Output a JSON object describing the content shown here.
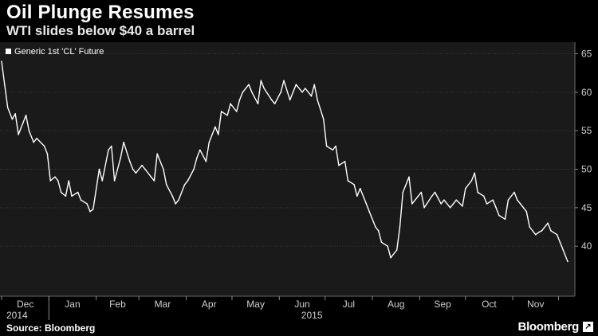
{
  "header": {
    "title": "Oil Plunge Resumes",
    "subtitle": "WTI slides below $40 a barrel"
  },
  "footer": {
    "source": "Source: Bloomberg",
    "brand": "Bloomberg"
  },
  "colors": {
    "background": "#000000",
    "plot_background": "#1a1a1a",
    "line": "#ffffff",
    "grid": "#3a3a3a"
  },
  "chart_data": {
    "type": "line",
    "title": "Oil Plunge Resumes",
    "subtitle": "WTI slides below $40 a barrel",
    "legend": {
      "entries": [
        "Generic 1st 'CL' Future"
      ],
      "placement": "top-left"
    },
    "ylim": [
      33.5,
      66.5
    ],
    "y_ticks": [
      40,
      45,
      50,
      55,
      60,
      65
    ],
    "x_tick_labels": [
      "Dec",
      "Jan",
      "Feb",
      "Mar",
      "Apr",
      "May",
      "Jun",
      "Jul",
      "Aug",
      "Sep",
      "Oct",
      "Nov"
    ],
    "year_labels": [
      "2014",
      "2015"
    ],
    "grid": true,
    "series": [
      {
        "name": "Generic 1st 'CL' Future",
        "x": [
          "2014-12-01",
          "2014-12-03",
          "2014-12-05",
          "2014-12-08",
          "2014-12-10",
          "2014-12-12",
          "2014-12-15",
          "2014-12-17",
          "2014-12-19",
          "2014-12-22",
          "2014-12-24",
          "2014-12-29",
          "2014-12-31",
          "2015-01-02",
          "2015-01-05",
          "2015-01-07",
          "2015-01-09",
          "2015-01-12",
          "2015-01-14",
          "2015-01-16",
          "2015-01-20",
          "2015-01-22",
          "2015-01-26",
          "2015-01-28",
          "2015-01-30",
          "2015-02-03",
          "2015-02-05",
          "2015-02-09",
          "2015-02-11",
          "2015-02-13",
          "2015-02-17",
          "2015-02-19",
          "2015-02-23",
          "2015-02-25",
          "2015-02-27",
          "2015-03-03",
          "2015-03-05",
          "2015-03-09",
          "2015-03-11",
          "2015-03-13",
          "2015-03-17",
          "2015-03-19",
          "2015-03-23",
          "2015-03-25",
          "2015-03-27",
          "2015-03-31",
          "2015-04-02",
          "2015-04-06",
          "2015-04-08",
          "2015-04-10",
          "2015-04-14",
          "2015-04-16",
          "2015-04-20",
          "2015-04-22",
          "2015-04-24",
          "2015-04-28",
          "2015-04-30",
          "2015-05-04",
          "2015-05-06",
          "2015-05-08",
          "2015-05-12",
          "2015-05-14",
          "2015-05-18",
          "2015-05-20",
          "2015-05-22",
          "2015-05-27",
          "2015-05-29",
          "2015-06-02",
          "2015-06-04",
          "2015-06-08",
          "2015-06-10",
          "2015-06-12",
          "2015-06-16",
          "2015-06-18",
          "2015-06-22",
          "2015-06-24",
          "2015-06-26",
          "2015-06-30",
          "2015-07-02",
          "2015-07-06",
          "2015-07-08",
          "2015-07-10",
          "2015-07-14",
          "2015-07-16",
          "2015-07-20",
          "2015-07-22",
          "2015-07-24",
          "2015-07-28",
          "2015-07-30",
          "2015-08-03",
          "2015-08-05",
          "2015-08-07",
          "2015-08-11",
          "2015-08-13",
          "2015-08-17",
          "2015-08-19",
          "2015-08-21",
          "2015-08-25",
          "2015-08-27",
          "2015-08-31",
          "2015-09-02",
          "2015-09-04",
          "2015-09-09",
          "2015-09-11",
          "2015-09-15",
          "2015-09-17",
          "2015-09-21",
          "2015-09-23",
          "2015-09-25",
          "2015-09-29",
          "2015-10-01",
          "2015-10-05",
          "2015-10-07",
          "2015-10-09",
          "2015-10-13",
          "2015-10-15",
          "2015-10-19",
          "2015-10-21",
          "2015-10-23",
          "2015-10-27",
          "2015-10-29",
          "2015-11-02",
          "2015-11-04",
          "2015-11-06",
          "2015-11-10",
          "2015-11-12",
          "2015-11-16",
          "2015-11-18",
          "2015-11-20",
          "2015-11-24",
          "2015-11-26",
          "2015-11-30",
          "2015-12-02",
          "2015-12-04",
          "2015-12-07"
        ],
        "values": [
          64.0,
          61.0,
          58.0,
          56.5,
          57.2,
          54.5,
          56.0,
          57.0,
          55.0,
          53.5,
          54.0,
          53.0,
          52.0,
          48.5,
          49.0,
          48.5,
          47.0,
          46.5,
          48.5,
          46.5,
          47.0,
          46.0,
          45.5,
          44.5,
          44.8,
          50.0,
          48.5,
          52.5,
          53.0,
          48.5,
          51.5,
          53.5,
          51.0,
          50.0,
          49.5,
          50.5,
          50.0,
          49.0,
          48.5,
          52.0,
          50.0,
          48.0,
          46.5,
          45.5,
          46.0,
          48.0,
          48.5,
          50.0,
          51.5,
          52.5,
          51.0,
          53.5,
          55.5,
          54.5,
          57.5,
          57.0,
          58.5,
          57.5,
          59.0,
          60.0,
          61.0,
          60.0,
          58.5,
          61.5,
          60.5,
          59.0,
          58.5,
          60.0,
          61.5,
          59.0,
          60.0,
          61.0,
          60.0,
          60.5,
          59.5,
          61.0,
          59.0,
          56.5,
          53.0,
          52.5,
          53.0,
          50.5,
          51.0,
          48.5,
          48.0,
          46.5,
          47.5,
          45.5,
          44.5,
          42.5,
          42.0,
          40.5,
          40.0,
          38.5,
          39.5,
          42.5,
          47.0,
          49.0,
          45.5,
          46.5,
          47.0,
          45.0,
          46.5,
          47.0,
          45.5,
          46.0,
          45.0,
          45.5,
          46.0,
          45.2,
          47.5,
          48.5,
          49.5,
          47.0,
          46.5,
          45.5,
          46.0,
          45.0,
          44.0,
          43.5,
          46.0,
          47.0,
          46.0,
          45.5,
          44.5,
          42.5,
          41.5,
          41.8,
          42.0,
          43.0,
          42.0,
          41.5,
          40.5,
          39.5,
          38.0
        ]
      }
    ]
  }
}
